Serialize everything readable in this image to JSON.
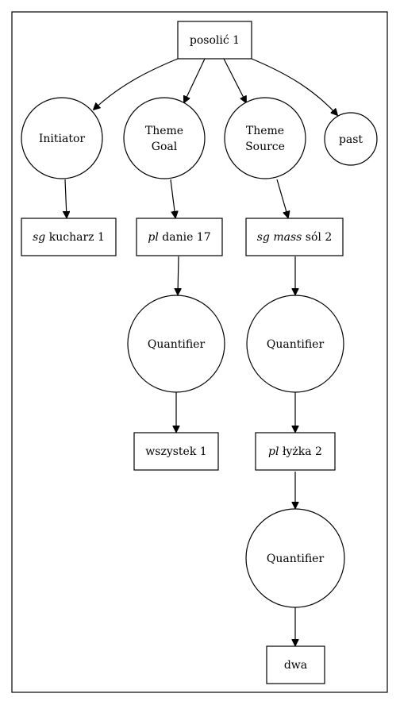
{
  "nodes": {
    "root": {
      "label": "posolić 1"
    },
    "initiator": {
      "label": "Initiator"
    },
    "theme_goal": {
      "line1": "Theme",
      "line2": "Goal"
    },
    "theme_source": {
      "line1": "Theme",
      "line2": "Source"
    },
    "past": {
      "label": "past"
    },
    "kucharz": {
      "feat": "sg",
      "label": "kucharz 1"
    },
    "danie": {
      "feat": "pl",
      "label": "danie 17"
    },
    "sol": {
      "feat1": "sg",
      "feat2": "mass",
      "label": "sól 2"
    },
    "quant1": {
      "label": "Quantifier"
    },
    "quant2": {
      "label": "Quantifier"
    },
    "wszystek": {
      "label": "wszystek 1"
    },
    "lyzka": {
      "feat": "pl",
      "label": "łyżka 2"
    },
    "quant3": {
      "label": "Quantifier"
    },
    "dwa": {
      "label": "dwa"
    }
  }
}
